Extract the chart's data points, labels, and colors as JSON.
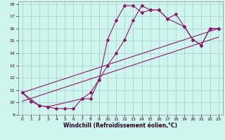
{
  "xlabel": "Windchill (Refroidissement éolien,°C)",
  "bg_color": "#cff5ef",
  "line_color": "#8b1a6b",
  "grid_color": "#aacccc",
  "xlim": [
    -0.5,
    23.5
  ],
  "ylim": [
    9,
    18.2
  ],
  "yticks": [
    9,
    10,
    11,
    12,
    13,
    14,
    15,
    16,
    17,
    18
  ],
  "xticks": [
    0,
    1,
    2,
    3,
    4,
    5,
    6,
    7,
    8,
    9,
    10,
    11,
    12,
    13,
    14,
    15,
    16,
    17,
    18,
    19,
    20,
    21,
    22,
    23
  ],
  "line1_x": [
    0,
    1,
    2,
    3,
    4,
    5,
    6,
    7,
    8,
    9,
    10,
    11,
    12,
    13,
    14,
    15,
    16,
    17,
    18,
    19,
    20,
    21,
    22,
    23
  ],
  "line1_y": [
    10.8,
    10.1,
    9.75,
    9.65,
    9.5,
    9.5,
    9.5,
    10.3,
    10.8,
    11.85,
    15.1,
    16.65,
    17.85,
    17.85,
    17.3,
    17.5,
    17.5,
    16.8,
    17.15,
    16.15,
    15.1,
    14.65,
    16.0,
    16.0
  ],
  "line2_x": [
    0,
    2,
    3,
    7,
    8,
    9,
    10,
    11,
    12,
    13,
    14,
    15,
    16,
    17,
    19,
    20,
    21,
    22,
    23
  ],
  "line2_y": [
    10.8,
    9.75,
    9.65,
    10.3,
    10.3,
    11.85,
    13.0,
    14.0,
    15.1,
    16.65,
    17.85,
    17.5,
    17.5,
    16.8,
    16.15,
    15.1,
    14.65,
    16.0,
    16.0
  ],
  "line3_x": [
    0,
    23
  ],
  "line3_y": [
    10.8,
    16.0
  ],
  "line4_x": [
    0,
    23
  ],
  "line4_y": [
    10.1,
    15.3
  ]
}
